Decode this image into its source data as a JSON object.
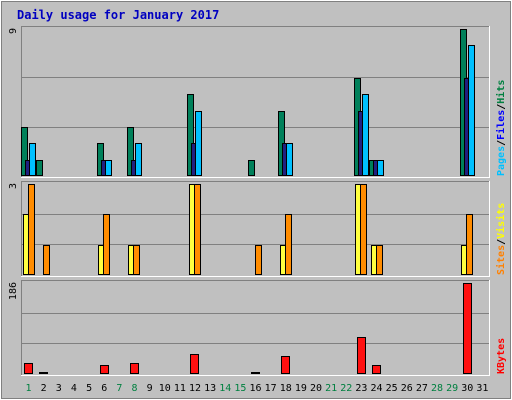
{
  "chart_data": {
    "type": "bar",
    "title": "Daily usage for January 2017",
    "categories": [
      "1",
      "2",
      "3",
      "4",
      "5",
      "6",
      "7",
      "8",
      "9",
      "10",
      "11",
      "12",
      "13",
      "14",
      "15",
      "16",
      "17",
      "18",
      "19",
      "20",
      "21",
      "22",
      "23",
      "24",
      "25",
      "26",
      "27",
      "28",
      "29",
      "30",
      "31"
    ],
    "weekend_days": [
      "1",
      "7",
      "8",
      "14",
      "15",
      "21",
      "22",
      "28",
      "29"
    ],
    "panels": [
      {
        "name": "hits-files-pages",
        "y_max_label": "9",
        "ylim": [
          0,
          9
        ],
        "legend": [
          {
            "label": "Pages",
            "color": "#00c0ff"
          },
          {
            "label": "Files",
            "color": "#0000ff"
          },
          {
            "label": "Hits",
            "color": "#008040"
          }
        ],
        "series": [
          {
            "name": "Hits",
            "color": "#00805a",
            "values": [
              3,
              1,
              0,
              0,
              0,
              2,
              0,
              3,
              0,
              0,
              0,
              5,
              0,
              0,
              0,
              1,
              0,
              4,
              0,
              0,
              0,
              0,
              6,
              1,
              0,
              0,
              0,
              0,
              0,
              9,
              0
            ]
          },
          {
            "name": "Files",
            "color": "#202080",
            "values": [
              1,
              0,
              0,
              0,
              0,
              1,
              0,
              1,
              0,
              0,
              0,
              2,
              0,
              0,
              0,
              0,
              0,
              2,
              0,
              0,
              0,
              0,
              4,
              1,
              0,
              0,
              0,
              0,
              0,
              6,
              0
            ]
          },
          {
            "name": "Pages",
            "color": "#00c0ff",
            "values": [
              2,
              0,
              0,
              0,
              0,
              1,
              0,
              2,
              0,
              0,
              0,
              4,
              0,
              0,
              0,
              0,
              0,
              2,
              0,
              0,
              0,
              0,
              5,
              1,
              0,
              0,
              0,
              0,
              0,
              8,
              0
            ]
          }
        ]
      },
      {
        "name": "visits-sites",
        "y_max_label": "3",
        "ylim": [
          0,
          3
        ],
        "legend": [
          {
            "label": "Sites",
            "color": "#ff8000"
          },
          {
            "label": "Visits",
            "color": "#ffff00"
          }
        ],
        "series": [
          {
            "name": "Visits",
            "color": "#ffff40",
            "values": [
              2,
              0,
              0,
              0,
              0,
              1,
              0,
              1,
              0,
              0,
              0,
              3,
              0,
              0,
              0,
              0,
              0,
              1,
              0,
              0,
              0,
              0,
              3,
              1,
              0,
              0,
              0,
              0,
              0,
              1,
              0
            ]
          },
          {
            "name": "Sites",
            "color": "#ff8c00",
            "values": [
              3,
              1,
              0,
              0,
              0,
              2,
              0,
              1,
              0,
              0,
              0,
              3,
              0,
              0,
              0,
              1,
              0,
              2,
              0,
              0,
              0,
              0,
              3,
              1,
              0,
              0,
              0,
              0,
              0,
              2,
              0
            ]
          }
        ]
      },
      {
        "name": "kbytes",
        "y_max_label": "186",
        "ylim": [
          0,
          186
        ],
        "legend": [
          {
            "label": "KBytes",
            "color": "#ff0000"
          }
        ],
        "series": [
          {
            "name": "KBytes",
            "color": "#ff1010",
            "values": [
              22,
              2,
              0,
              0,
              0,
              19,
              0,
              22,
              0,
              0,
              0,
              40,
              0,
              0,
              0,
              2,
              0,
              37,
              0,
              0,
              0,
              0,
              75,
              19,
              0,
              0,
              0,
              0,
              0,
              186,
              0
            ]
          }
        ]
      }
    ]
  }
}
